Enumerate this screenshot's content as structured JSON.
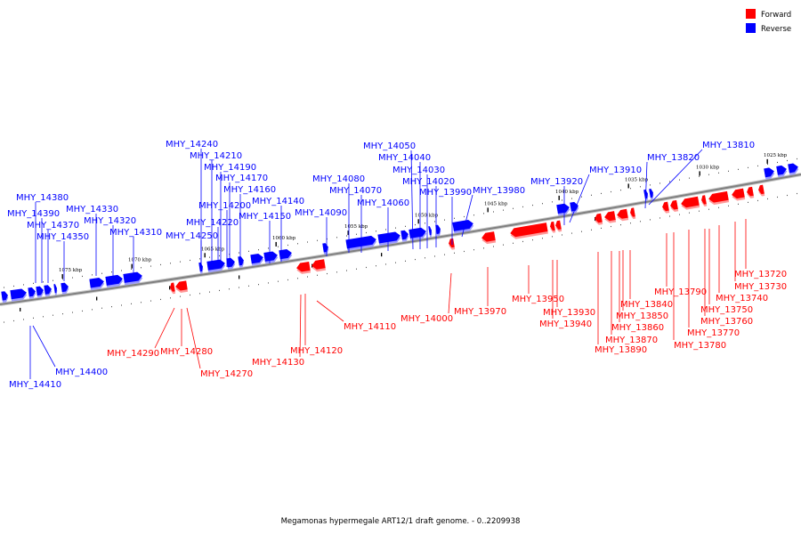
{
  "caption": "Megamonas hypermegale ART12/1 draft genome. - 0..2209938",
  "legend": [
    {
      "label": "Forward",
      "color": "#ff0000"
    },
    {
      "label": "Reverse",
      "color": "#0000ff"
    }
  ],
  "colors": {
    "forward": "#ff0000",
    "reverse": "#0000ff",
    "backbone": "#808080"
  },
  "ticks": [
    "1075 kbp",
    "1070 kbp",
    "1065 kbp",
    "1060 kbp",
    "1055 kbp",
    "1050 kbp",
    "1045 kbp",
    "1040 kbp",
    "1035 kbp",
    "1030 kbp",
    "1025 kbp"
  ],
  "genes": [
    {
      "name": "MHY_14380",
      "strand": "reverse"
    },
    {
      "name": "MHY_14390",
      "strand": "reverse"
    },
    {
      "name": "MHY_14370",
      "strand": "reverse"
    },
    {
      "name": "MHY_14350",
      "strand": "reverse"
    },
    {
      "name": "MHY_14330",
      "strand": "reverse"
    },
    {
      "name": "MHY_14320",
      "strand": "reverse"
    },
    {
      "name": "MHY_14310",
      "strand": "reverse"
    },
    {
      "name": "MHY_14240",
      "strand": "reverse"
    },
    {
      "name": "MHY_14210",
      "strand": "reverse"
    },
    {
      "name": "MHY_14190",
      "strand": "reverse"
    },
    {
      "name": "MHY_14170",
      "strand": "reverse"
    },
    {
      "name": "MHY_14160",
      "strand": "reverse"
    },
    {
      "name": "MHY_14200",
      "strand": "reverse"
    },
    {
      "name": "MHY_14220",
      "strand": "reverse"
    },
    {
      "name": "MHY_14140",
      "strand": "reverse"
    },
    {
      "name": "MHY_14150",
      "strand": "reverse"
    },
    {
      "name": "MHY_14250",
      "strand": "reverse"
    },
    {
      "name": "MHY_14090",
      "strand": "reverse"
    },
    {
      "name": "MHY_14080",
      "strand": "reverse"
    },
    {
      "name": "MHY_14070",
      "strand": "reverse"
    },
    {
      "name": "MHY_14060",
      "strand": "reverse"
    },
    {
      "name": "MHY_14050",
      "strand": "reverse"
    },
    {
      "name": "MHY_14040",
      "strand": "reverse"
    },
    {
      "name": "MHY_14030",
      "strand": "reverse"
    },
    {
      "name": "MHY_14020",
      "strand": "reverse"
    },
    {
      "name": "MHY_13990",
      "strand": "reverse"
    },
    {
      "name": "MHY_13980",
      "strand": "reverse"
    },
    {
      "name": "MHY_13920",
      "strand": "reverse"
    },
    {
      "name": "MHY_13910",
      "strand": "reverse"
    },
    {
      "name": "MHY_13820",
      "strand": "reverse"
    },
    {
      "name": "MHY_13810",
      "strand": "reverse"
    },
    {
      "name": "MHY_14410",
      "strand": "reverse"
    },
    {
      "name": "MHY_14400",
      "strand": "reverse"
    },
    {
      "name": "MHY_14290",
      "strand": "forward"
    },
    {
      "name": "MHY_14280",
      "strand": "forward"
    },
    {
      "name": "MHY_14270",
      "strand": "forward"
    },
    {
      "name": "MHY_14130",
      "strand": "forward"
    },
    {
      "name": "MHY_14120",
      "strand": "forward"
    },
    {
      "name": "MHY_14110",
      "strand": "forward"
    },
    {
      "name": "MHY_14000",
      "strand": "forward"
    },
    {
      "name": "MHY_13970",
      "strand": "forward"
    },
    {
      "name": "MHY_13950",
      "strand": "forward"
    },
    {
      "name": "MHY_13930",
      "strand": "forward"
    },
    {
      "name": "MHY_13940",
      "strand": "forward"
    },
    {
      "name": "MHY_13840",
      "strand": "forward"
    },
    {
      "name": "MHY_13850",
      "strand": "forward"
    },
    {
      "name": "MHY_13860",
      "strand": "forward"
    },
    {
      "name": "MHY_13870",
      "strand": "forward"
    },
    {
      "name": "MHY_13890",
      "strand": "forward"
    },
    {
      "name": "MHY_13790",
      "strand": "forward"
    },
    {
      "name": "MHY_13780",
      "strand": "forward"
    },
    {
      "name": "MHY_13770",
      "strand": "forward"
    },
    {
      "name": "MHY_13760",
      "strand": "forward"
    },
    {
      "name": "MHY_13750",
      "strand": "forward"
    },
    {
      "name": "MHY_13740",
      "strand": "forward"
    },
    {
      "name": "MHY_13730",
      "strand": "forward"
    },
    {
      "name": "MHY_13720",
      "strand": "forward"
    }
  ]
}
